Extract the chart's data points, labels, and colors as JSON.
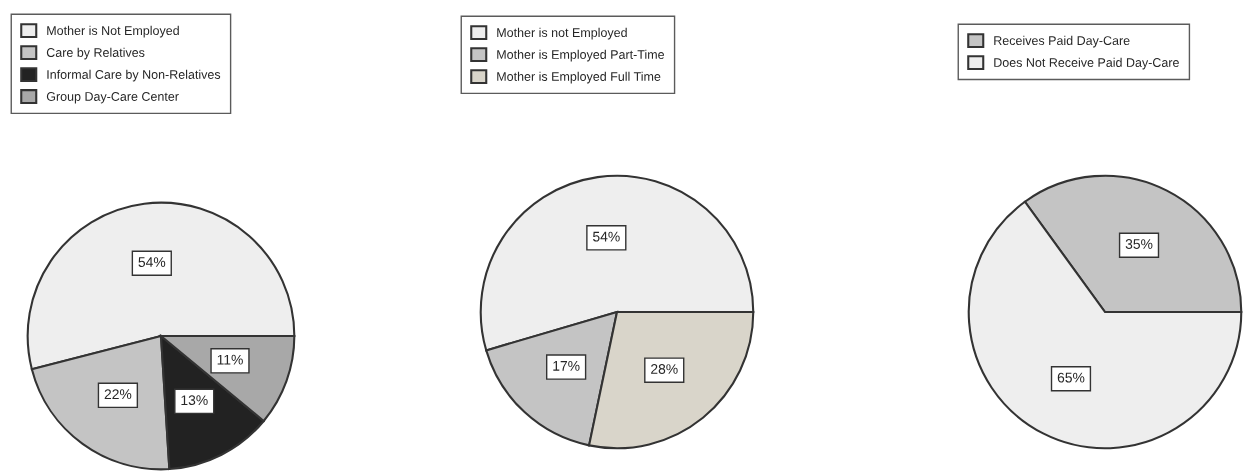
{
  "chart_data": [
    {
      "type": "pie",
      "categories": [
        "Mother is Not Employed",
        "Care by Relatives",
        "Informal Care by Non-Relatives",
        "Group Day-Care Center"
      ],
      "values": [
        54,
        22,
        13,
        11
      ],
      "colors": [
        "#eeeeee",
        "#c4c4c4",
        "#222222",
        "#a8a8a8"
      ],
      "value_labels": [
        "54%",
        "22%",
        "13%",
        "11%"
      ],
      "legend": "top"
    },
    {
      "type": "pie",
      "categories": [
        "Mother is not Employed",
        "Mother is Employed Part-Time",
        "Mother is Employed Full Time"
      ],
      "values": [
        54,
        17,
        28
      ],
      "colors": [
        "#eeeeee",
        "#c4c4c4",
        "#d9d5ca"
      ],
      "value_labels": [
        "54%",
        "17%",
        "28%"
      ],
      "legend": "top"
    },
    {
      "type": "pie",
      "categories": [
        "Receives Paid Day-Care",
        "Does Not Receive Paid Day-Care"
      ],
      "values": [
        35,
        65
      ],
      "colors": [
        "#c4c4c4",
        "#eeeeee"
      ],
      "value_labels": [
        "35%",
        "65%"
      ],
      "legend": "top"
    }
  ]
}
